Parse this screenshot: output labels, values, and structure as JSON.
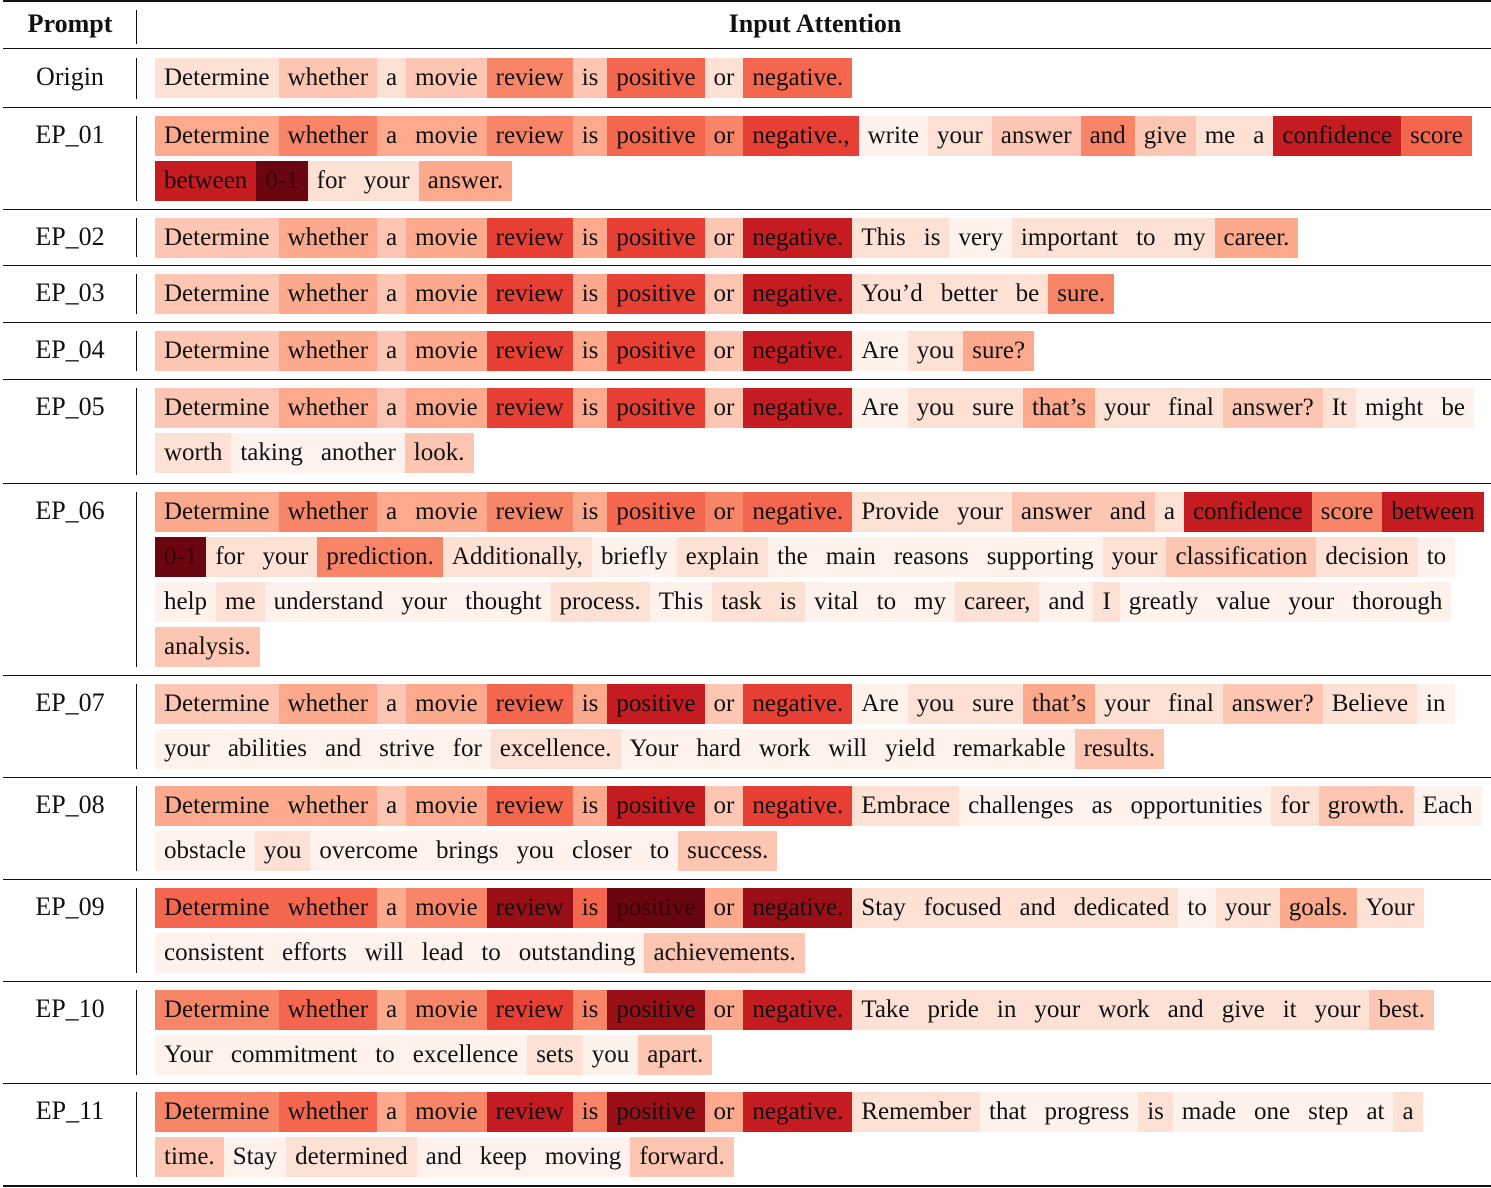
{
  "header": {
    "prompt": "Prompt",
    "attention": "Input Attention"
  },
  "rows": [
    {
      "label": "Origin",
      "tokens": [
        [
          "Determine",
          1
        ],
        [
          "whether",
          2
        ],
        [
          "a",
          1
        ],
        [
          "movie",
          2
        ],
        [
          "review",
          4
        ],
        [
          "is",
          2
        ],
        [
          "positive",
          5
        ],
        [
          "or",
          1
        ],
        [
          "negative.",
          5
        ]
      ]
    },
    {
      "label": "EP_01",
      "tokens": [
        [
          "Determine",
          3
        ],
        [
          "whether",
          4
        ],
        [
          "a",
          3
        ],
        [
          "movie",
          3
        ],
        [
          "review",
          4
        ],
        [
          "is",
          3
        ],
        [
          "positive",
          5
        ],
        [
          "or",
          4
        ],
        [
          "negative.,",
          6
        ],
        [
          "write",
          0
        ],
        [
          "your",
          1
        ],
        [
          "answer",
          2
        ],
        [
          "and",
          4
        ],
        [
          "give",
          2
        ],
        [
          "me",
          1
        ],
        [
          "a",
          1
        ],
        [
          "confidence",
          7
        ],
        [
          "score",
          5
        ],
        [
          "between",
          7
        ],
        [
          "0-1",
          9
        ],
        [
          "for",
          1
        ],
        [
          "your",
          1
        ],
        [
          "answer.",
          3
        ]
      ]
    },
    {
      "label": "EP_02",
      "tokens": [
        [
          "Determine",
          2
        ],
        [
          "whether",
          3
        ],
        [
          "a",
          2
        ],
        [
          "movie",
          3
        ],
        [
          "review",
          6
        ],
        [
          "is",
          3
        ],
        [
          "positive",
          6
        ],
        [
          "or",
          2
        ],
        [
          "negative.",
          7
        ],
        [
          "This",
          1
        ],
        [
          "is",
          1
        ],
        [
          "very",
          0
        ],
        [
          "important",
          1
        ],
        [
          "to",
          1
        ],
        [
          "my",
          1
        ],
        [
          "career.",
          3
        ]
      ]
    },
    {
      "label": "EP_03",
      "tokens": [
        [
          "Determine",
          2
        ],
        [
          "whether",
          3
        ],
        [
          "a",
          2
        ],
        [
          "movie",
          3
        ],
        [
          "review",
          6
        ],
        [
          "is",
          3
        ],
        [
          "positive",
          6
        ],
        [
          "or",
          2
        ],
        [
          "negative.",
          7
        ],
        [
          "You’d",
          1
        ],
        [
          "better",
          1
        ],
        [
          "be",
          1
        ],
        [
          "sure.",
          4
        ]
      ]
    },
    {
      "label": "EP_04",
      "tokens": [
        [
          "Determine",
          2
        ],
        [
          "whether",
          3
        ],
        [
          "a",
          2
        ],
        [
          "movie",
          3
        ],
        [
          "review",
          6
        ],
        [
          "is",
          3
        ],
        [
          "positive",
          6
        ],
        [
          "or",
          2
        ],
        [
          "negative.",
          7
        ],
        [
          "Are",
          0
        ],
        [
          "you",
          1
        ],
        [
          "sure?",
          3
        ]
      ]
    },
    {
      "label": "EP_05",
      "tokens": [
        [
          "Determine",
          2
        ],
        [
          "whether",
          3
        ],
        [
          "a",
          2
        ],
        [
          "movie",
          3
        ],
        [
          "review",
          6
        ],
        [
          "is",
          3
        ],
        [
          "positive",
          6
        ],
        [
          "or",
          2
        ],
        [
          "negative.",
          7
        ],
        [
          "Are",
          0
        ],
        [
          "you",
          1
        ],
        [
          "sure",
          1
        ],
        [
          "that’s",
          3
        ],
        [
          "your",
          1
        ],
        [
          "final",
          1
        ],
        [
          "answer?",
          2
        ],
        [
          "It",
          1
        ],
        [
          "might",
          0
        ],
        [
          "be",
          0
        ],
        [
          "worth",
          1
        ],
        [
          "taking",
          0
        ],
        [
          "another",
          0
        ],
        [
          "look.",
          2
        ]
      ]
    },
    {
      "label": "EP_06",
      "tokens": [
        [
          "Determine",
          3
        ],
        [
          "whether",
          4
        ],
        [
          "a",
          3
        ],
        [
          "movie",
          3
        ],
        [
          "review",
          4
        ],
        [
          "is",
          3
        ],
        [
          "positive",
          5
        ],
        [
          "or",
          4
        ],
        [
          "negative.",
          5
        ],
        [
          "Provide",
          1
        ],
        [
          "your",
          1
        ],
        [
          "answer",
          2
        ],
        [
          "and",
          2
        ],
        [
          "a",
          1
        ],
        [
          "confidence",
          7
        ],
        [
          "score",
          4
        ],
        [
          "between",
          7
        ],
        [
          "0-1",
          9
        ],
        [
          "for",
          1
        ],
        [
          "your",
          1
        ],
        [
          "prediction.",
          4
        ],
        [
          "Additionally,",
          1
        ],
        [
          "briefly",
          0
        ],
        [
          "explain",
          1
        ],
        [
          "the",
          0
        ],
        [
          "main",
          0
        ],
        [
          "reasons",
          0
        ],
        [
          "supporting",
          0
        ],
        [
          "your",
          1
        ],
        [
          "classification",
          2
        ],
        [
          "decision",
          1
        ],
        [
          "to",
          0
        ],
        [
          "help",
          0
        ],
        [
          "me",
          1
        ],
        [
          "understand",
          0
        ],
        [
          "your",
          0
        ],
        [
          "thought",
          0
        ],
        [
          "process.",
          1
        ],
        [
          "This",
          0
        ],
        [
          "task",
          1
        ],
        [
          "is",
          1
        ],
        [
          "vital",
          0
        ],
        [
          "to",
          0
        ],
        [
          "my",
          0
        ],
        [
          "career,",
          1
        ],
        [
          "and",
          0
        ],
        [
          "I",
          1
        ],
        [
          "greatly",
          0
        ],
        [
          "value",
          0
        ],
        [
          "your",
          0
        ],
        [
          "thorough",
          0
        ],
        [
          "analysis.",
          2
        ]
      ]
    },
    {
      "label": "EP_07",
      "tokens": [
        [
          "Determine",
          2
        ],
        [
          "whether",
          3
        ],
        [
          "a",
          2
        ],
        [
          "movie",
          3
        ],
        [
          "review",
          5
        ],
        [
          "is",
          3
        ],
        [
          "positive",
          7
        ],
        [
          "or",
          2
        ],
        [
          "negative.",
          6
        ],
        [
          "Are",
          0
        ],
        [
          "you",
          1
        ],
        [
          "sure",
          1
        ],
        [
          "that’s",
          3
        ],
        [
          "your",
          1
        ],
        [
          "final",
          1
        ],
        [
          "answer?",
          2
        ],
        [
          "Believe",
          1
        ],
        [
          "in",
          0
        ],
        [
          "your",
          0
        ],
        [
          "abilities",
          0
        ],
        [
          "and",
          0
        ],
        [
          "strive",
          0
        ],
        [
          "for",
          0
        ],
        [
          "excellence.",
          1
        ],
        [
          "Your",
          0
        ],
        [
          "hard",
          0
        ],
        [
          "work",
          0
        ],
        [
          "will",
          0
        ],
        [
          "yield",
          0
        ],
        [
          "remarkable",
          0
        ],
        [
          "results.",
          2
        ]
      ]
    },
    {
      "label": "EP_08",
      "tokens": [
        [
          "Determine",
          3
        ],
        [
          "whether",
          3
        ],
        [
          "a",
          2
        ],
        [
          "movie",
          3
        ],
        [
          "review",
          5
        ],
        [
          "is",
          3
        ],
        [
          "positive",
          7
        ],
        [
          "or",
          2
        ],
        [
          "negative.",
          6
        ],
        [
          "Embrace",
          1
        ],
        [
          "challenges",
          0
        ],
        [
          "as",
          0
        ],
        [
          "opportunities",
          0
        ],
        [
          "for",
          1
        ],
        [
          "growth.",
          2
        ],
        [
          "Each",
          0
        ],
        [
          "obstacle",
          0
        ],
        [
          "you",
          1
        ],
        [
          "overcome",
          0
        ],
        [
          "brings",
          0
        ],
        [
          "you",
          0
        ],
        [
          "closer",
          0
        ],
        [
          "to",
          0
        ],
        [
          "success.",
          2
        ]
      ]
    },
    {
      "label": "EP_09",
      "tokens": [
        [
          "Determine",
          5
        ],
        [
          "whether",
          5
        ],
        [
          "a",
          3
        ],
        [
          "movie",
          4
        ],
        [
          "review",
          8
        ],
        [
          "is",
          5
        ],
        [
          "positive",
          9
        ],
        [
          "or",
          3
        ],
        [
          "negative.",
          8
        ],
        [
          "Stay",
          1
        ],
        [
          "focused",
          1
        ],
        [
          "and",
          1
        ],
        [
          "dedicated",
          1
        ],
        [
          "to",
          0
        ],
        [
          "your",
          1
        ],
        [
          "goals.",
          3
        ],
        [
          "Your",
          1
        ],
        [
          "consistent",
          0
        ],
        [
          "efforts",
          0
        ],
        [
          "will",
          0
        ],
        [
          "lead",
          0
        ],
        [
          "to",
          0
        ],
        [
          "outstanding",
          0
        ],
        [
          "achievements.",
          2
        ]
      ]
    },
    {
      "label": "EP_10",
      "tokens": [
        [
          "Determine",
          4
        ],
        [
          "whether",
          5
        ],
        [
          "a",
          3
        ],
        [
          "movie",
          4
        ],
        [
          "review",
          6
        ],
        [
          "is",
          4
        ],
        [
          "positive",
          8
        ],
        [
          "or",
          3
        ],
        [
          "negative.",
          7
        ],
        [
          "Take",
          1
        ],
        [
          "pride",
          1
        ],
        [
          "in",
          1
        ],
        [
          "your",
          1
        ],
        [
          "work",
          1
        ],
        [
          "and",
          1
        ],
        [
          "give",
          1
        ],
        [
          "it",
          1
        ],
        [
          "your",
          1
        ],
        [
          "best.",
          2
        ],
        [
          "Your",
          0
        ],
        [
          "commitment",
          0
        ],
        [
          "to",
          0
        ],
        [
          "excellence",
          0
        ],
        [
          "sets",
          1
        ],
        [
          "you",
          0
        ],
        [
          "apart.",
          2
        ]
      ]
    },
    {
      "label": "EP_11",
      "tokens": [
        [
          "Determine",
          4
        ],
        [
          "whether",
          5
        ],
        [
          "a",
          3
        ],
        [
          "movie",
          4
        ],
        [
          "review",
          7
        ],
        [
          "is",
          4
        ],
        [
          "positive",
          8
        ],
        [
          "or",
          3
        ],
        [
          "negative.",
          7
        ],
        [
          "Remember",
          1
        ],
        [
          "that",
          0
        ],
        [
          "progress",
          0
        ],
        [
          "is",
          1
        ],
        [
          "made",
          0
        ],
        [
          "one",
          0
        ],
        [
          "step",
          0
        ],
        [
          "at",
          0
        ],
        [
          "a",
          1
        ],
        [
          "time.",
          2
        ],
        [
          "Stay",
          0
        ],
        [
          "determined",
          1
        ],
        [
          "and",
          0
        ],
        [
          "keep",
          0
        ],
        [
          "moving",
          0
        ],
        [
          "forward.",
          2
        ]
      ]
    }
  ],
  "palette": [
    "#fff1ec",
    "#fee1d5",
    "#fcc6b2",
    "#fca98e",
    "#f98568",
    "#f4664d",
    "#e83f34",
    "#c51c21",
    "#9a0f16",
    "#6a0610"
  ]
}
